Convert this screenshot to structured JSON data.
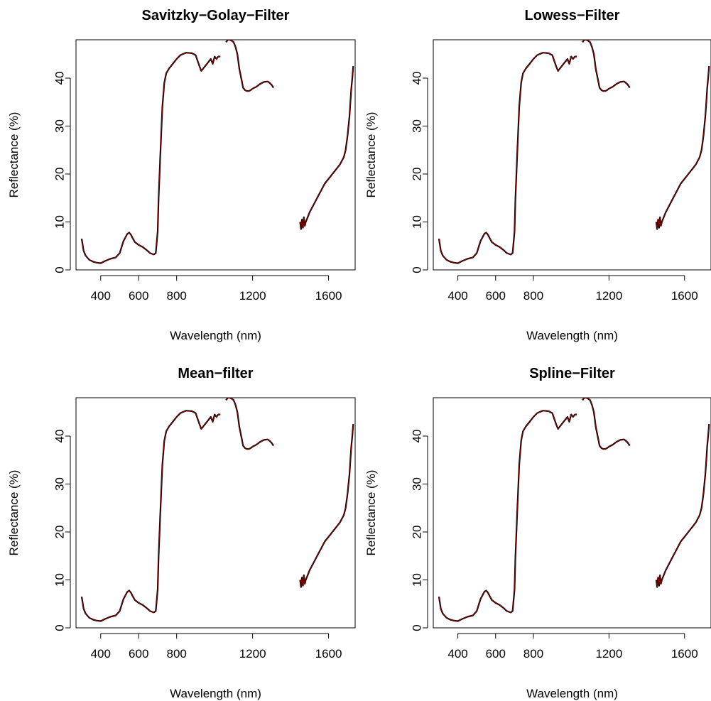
{
  "chart_data": [
    {
      "type": "line",
      "title": "Savitzky−Golay−Filter",
      "xlabel": "Wavelength (nm)",
      "ylabel": "Reflectance (%)",
      "xlim": [
        270,
        1740
      ],
      "ylim": [
        0,
        48
      ],
      "xticks": [
        400,
        600,
        800,
        1200,
        1600
      ],
      "yticks": [
        0,
        10,
        20,
        30,
        40
      ],
      "grid": false,
      "series_colors": {
        "raw": "#000000",
        "filtered": "#8b0000"
      },
      "segments": [
        {
          "x": [
            300,
            310,
            320,
            340,
            360,
            380,
            400,
            420,
            450,
            480,
            500,
            520,
            540,
            550,
            560,
            570,
            580,
            600,
            620,
            640,
            660,
            680,
            690,
            700,
            705,
            715,
            725,
            735,
            745,
            760,
            780,
            800,
            820,
            850,
            880,
            900,
            920,
            930,
            940,
            950,
            960,
            970,
            980,
            990,
            1000,
            1010,
            1020,
            1030
          ],
          "y": [
            6.5,
            4,
            3,
            2.1,
            1.7,
            1.5,
            1.4,
            1.8,
            2.3,
            2.6,
            3.5,
            6.0,
            7.5,
            7.8,
            7.3,
            6.5,
            5.8,
            5.2,
            4.8,
            4.2,
            3.5,
            3.2,
            3.5,
            8,
            15,
            25,
            34,
            39,
            41,
            42,
            43,
            44,
            44.8,
            45.3,
            45.2,
            44.8,
            42.5,
            41.5,
            42,
            42.5,
            43,
            43.5,
            44,
            43,
            44.5,
            44,
            44.5,
            44.5
          ]
        },
        {
          "x": [
            1060,
            1070,
            1080,
            1090,
            1100,
            1110,
            1120,
            1130,
            1140,
            1150,
            1160,
            1170,
            1180,
            1190,
            1200,
            1220,
            1240,
            1260,
            1280,
            1290,
            1300,
            1310
          ],
          "y": [
            47.5,
            48,
            48,
            47.8,
            47.5,
            46.5,
            45,
            42,
            40,
            38,
            37.5,
            37.3,
            37.3,
            37.5,
            37.8,
            38.2,
            38.8,
            39.2,
            39.3,
            39,
            38.6,
            38
          ]
        },
        {
          "x": [
            1450,
            1455,
            1460,
            1465,
            1470,
            1475,
            1480,
            1490,
            1500,
            1520,
            1540,
            1560,
            1580,
            1600,
            1620,
            1640,
            1660,
            1680,
            1690,
            1700,
            1710,
            1715,
            1720,
            1725,
            1730
          ],
          "y": [
            10,
            8.5,
            10.5,
            8.8,
            11,
            9.2,
            10,
            11,
            12,
            13.5,
            15,
            16.5,
            18,
            19,
            20,
            21,
            22,
            23.5,
            25,
            28,
            32,
            35,
            38,
            40,
            42.5
          ]
        }
      ]
    },
    {
      "type": "line",
      "title": "Lowess−Filter",
      "xlabel": "Wavelength (nm)",
      "ylabel": "Reflectance (%)",
      "xlim": [
        270,
        1740
      ],
      "ylim": [
        0,
        48
      ],
      "xticks": [
        400,
        600,
        800,
        1200,
        1600
      ],
      "yticks": [
        0,
        10,
        20,
        30,
        40
      ],
      "grid": false,
      "series_colors": {
        "raw": "#000000",
        "filtered": "#8b0000"
      },
      "segments": [
        {
          "x": [
            300,
            310,
            320,
            340,
            360,
            380,
            400,
            420,
            450,
            480,
            500,
            520,
            540,
            550,
            560,
            570,
            580,
            600,
            620,
            640,
            660,
            680,
            690,
            700,
            705,
            715,
            725,
            735,
            745,
            760,
            780,
            800,
            820,
            850,
            880,
            900,
            920,
            930,
            940,
            950,
            960,
            970,
            980,
            990,
            1000,
            1010,
            1020,
            1030
          ],
          "y": [
            6.5,
            4,
            3,
            2.1,
            1.7,
            1.5,
            1.4,
            1.8,
            2.3,
            2.6,
            3.5,
            6.0,
            7.5,
            7.8,
            7.3,
            6.5,
            5.8,
            5.2,
            4.8,
            4.2,
            3.5,
            3.2,
            3.5,
            8,
            15,
            25,
            34,
            39,
            41,
            42,
            43,
            44,
            44.8,
            45.3,
            45.2,
            44.8,
            42.5,
            41.5,
            42,
            42.5,
            43,
            43.5,
            44,
            43,
            44.5,
            44,
            44.5,
            44.5
          ]
        },
        {
          "x": [
            1060,
            1070,
            1080,
            1090,
            1100,
            1110,
            1120,
            1130,
            1140,
            1150,
            1160,
            1170,
            1180,
            1190,
            1200,
            1220,
            1240,
            1260,
            1280,
            1290,
            1300,
            1310
          ],
          "y": [
            47.5,
            48,
            48,
            47.8,
            47.5,
            46.5,
            45,
            42,
            40,
            38,
            37.5,
            37.3,
            37.3,
            37.5,
            37.8,
            38.2,
            38.8,
            39.2,
            39.3,
            39,
            38.6,
            38
          ]
        },
        {
          "x": [
            1450,
            1455,
            1460,
            1465,
            1470,
            1475,
            1480,
            1490,
            1500,
            1520,
            1540,
            1560,
            1580,
            1600,
            1620,
            1640,
            1660,
            1680,
            1690,
            1700,
            1710,
            1715,
            1720,
            1725,
            1730
          ],
          "y": [
            10,
            8.5,
            10.5,
            8.8,
            11,
            9.2,
            10,
            11,
            12,
            13.5,
            15,
            16.5,
            18,
            19,
            20,
            21,
            22,
            23.5,
            25,
            28,
            32,
            35,
            38,
            40,
            42.5
          ]
        }
      ]
    },
    {
      "type": "line",
      "title": "Mean−filter",
      "xlabel": "Wavelength (nm)",
      "ylabel": "Reflectance (%)",
      "xlim": [
        270,
        1740
      ],
      "ylim": [
        0,
        48
      ],
      "xticks": [
        400,
        600,
        800,
        1200,
        1600
      ],
      "yticks": [
        0,
        10,
        20,
        30,
        40
      ],
      "grid": false,
      "series_colors": {
        "raw": "#000000",
        "filtered": "#8b0000"
      },
      "segments": [
        {
          "x": [
            300,
            310,
            320,
            340,
            360,
            380,
            400,
            420,
            450,
            480,
            500,
            520,
            540,
            550,
            560,
            570,
            580,
            600,
            620,
            640,
            660,
            680,
            690,
            700,
            705,
            715,
            725,
            735,
            745,
            760,
            780,
            800,
            820,
            850,
            880,
            900,
            920,
            930,
            940,
            950,
            960,
            970,
            980,
            990,
            1000,
            1010,
            1020,
            1030
          ],
          "y": [
            6.5,
            4,
            3,
            2.1,
            1.7,
            1.5,
            1.4,
            1.8,
            2.3,
            2.6,
            3.5,
            6.0,
            7.5,
            7.8,
            7.3,
            6.5,
            5.8,
            5.2,
            4.8,
            4.2,
            3.5,
            3.2,
            3.5,
            8,
            15,
            25,
            34,
            39,
            41,
            42,
            43,
            44,
            44.8,
            45.3,
            45.2,
            44.8,
            42.5,
            41.5,
            42,
            42.5,
            43,
            43.5,
            44,
            43,
            44.5,
            44,
            44.5,
            44.5
          ]
        },
        {
          "x": [
            1060,
            1070,
            1080,
            1090,
            1100,
            1110,
            1120,
            1130,
            1140,
            1150,
            1160,
            1170,
            1180,
            1190,
            1200,
            1220,
            1240,
            1260,
            1280,
            1290,
            1300,
            1310
          ],
          "y": [
            47.5,
            48,
            48,
            47.8,
            47.5,
            46.5,
            45,
            42,
            40,
            38,
            37.5,
            37.3,
            37.3,
            37.5,
            37.8,
            38.2,
            38.8,
            39.2,
            39.3,
            39,
            38.6,
            38
          ]
        },
        {
          "x": [
            1450,
            1455,
            1460,
            1465,
            1470,
            1475,
            1480,
            1490,
            1500,
            1520,
            1540,
            1560,
            1580,
            1600,
            1620,
            1640,
            1660,
            1680,
            1690,
            1700,
            1710,
            1715,
            1720,
            1725,
            1730
          ],
          "y": [
            10,
            8.5,
            10.5,
            8.8,
            11,
            9.2,
            10,
            11,
            12,
            13.5,
            15,
            16.5,
            18,
            19,
            20,
            21,
            22,
            23.5,
            25,
            28,
            32,
            35,
            38,
            40,
            42.5
          ]
        }
      ]
    },
    {
      "type": "line",
      "title": "Spline−Filter",
      "xlabel": "Wavelength (nm)",
      "ylabel": "Reflectance (%)",
      "xlim": [
        270,
        1740
      ],
      "ylim": [
        0,
        48
      ],
      "xticks": [
        400,
        600,
        800,
        1200,
        1600
      ],
      "yticks": [
        0,
        10,
        20,
        30,
        40
      ],
      "grid": false,
      "series_colors": {
        "raw": "#000000",
        "filtered": "#8b0000"
      },
      "segments": [
        {
          "x": [
            300,
            310,
            320,
            340,
            360,
            380,
            400,
            420,
            450,
            480,
            500,
            520,
            540,
            550,
            560,
            570,
            580,
            600,
            620,
            640,
            660,
            680,
            690,
            700,
            705,
            715,
            725,
            735,
            745,
            760,
            780,
            800,
            820,
            850,
            880,
            900,
            920,
            930,
            940,
            950,
            960,
            970,
            980,
            990,
            1000,
            1010,
            1020,
            1030
          ],
          "y": [
            6.5,
            4,
            3,
            2.1,
            1.7,
            1.5,
            1.4,
            1.8,
            2.3,
            2.6,
            3.5,
            6.0,
            7.5,
            7.8,
            7.3,
            6.5,
            5.8,
            5.2,
            4.8,
            4.2,
            3.5,
            3.2,
            3.5,
            8,
            15,
            25,
            34,
            39,
            41,
            42,
            43,
            44,
            44.8,
            45.3,
            45.2,
            44.8,
            42.5,
            41.5,
            42,
            42.5,
            43,
            43.5,
            44,
            43,
            44.5,
            44,
            44.5,
            44.5
          ]
        },
        {
          "x": [
            1060,
            1070,
            1080,
            1090,
            1100,
            1110,
            1120,
            1130,
            1140,
            1150,
            1160,
            1170,
            1180,
            1190,
            1200,
            1220,
            1240,
            1260,
            1280,
            1290,
            1300,
            1310
          ],
          "y": [
            47.5,
            48,
            48,
            47.8,
            47.5,
            46.5,
            45,
            42,
            40,
            38,
            37.5,
            37.3,
            37.3,
            37.5,
            37.8,
            38.2,
            38.8,
            39.2,
            39.3,
            39,
            38.6,
            38
          ]
        },
        {
          "x": [
            1450,
            1455,
            1460,
            1465,
            1470,
            1475,
            1480,
            1490,
            1500,
            1520,
            1540,
            1560,
            1580,
            1600,
            1620,
            1640,
            1660,
            1680,
            1690,
            1700,
            1710,
            1715,
            1720,
            1725,
            1730
          ],
          "y": [
            10,
            8.5,
            10.5,
            8.8,
            11,
            9.2,
            10,
            11,
            12,
            13.5,
            15,
            16.5,
            18,
            19,
            20,
            21,
            22,
            23.5,
            25,
            28,
            32,
            35,
            38,
            40,
            42.5
          ]
        }
      ]
    }
  ]
}
